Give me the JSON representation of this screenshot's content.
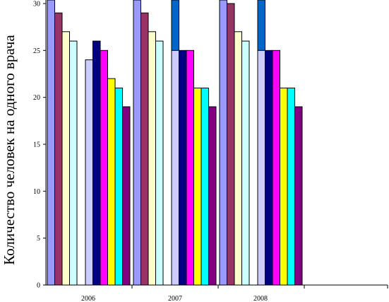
{
  "chart_data": {
    "type": "bar",
    "title": "",
    "xlabel": "",
    "ylabel": "Количество человек на одного врача",
    "ylim": [
      0,
      30
    ],
    "yticks": [
      "0",
      "5",
      "10",
      "15",
      "20",
      "25",
      "30"
    ],
    "categories": [
      "2006",
      "2007",
      "2008"
    ],
    "grid": false,
    "legend": "none",
    "bar_colors": [
      "#9999ff",
      "#993366",
      "#ffffcc",
      "#ccffff",
      "#ccccff",
      "#000080",
      "#ff00ff",
      "#ffff00",
      "#00ffff",
      "#800080"
    ],
    "values": [
      [
        31,
        29,
        27,
        26,
        24,
        26,
        25,
        22,
        21,
        19
      ],
      [
        31,
        29,
        27,
        26,
        25,
        25,
        25,
        21,
        21,
        19
      ],
      [
        31,
        30,
        27,
        26,
        25,
        25,
        25,
        21,
        21,
        19
      ]
    ],
    "extra_bars": {
      "color": "#0066cc",
      "values": [
        null,
        31,
        31
      ]
    }
  }
}
